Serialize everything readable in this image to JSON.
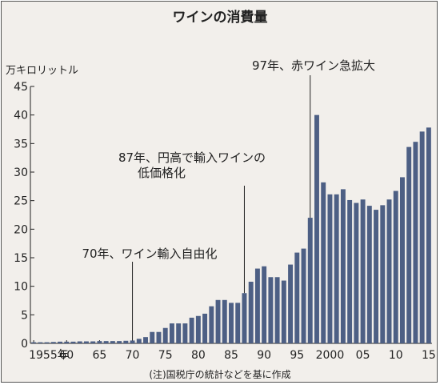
{
  "chart_data": {
    "type": "bar",
    "title": "ワインの消費量",
    "unit_label": "万キロリットル",
    "source": "(注)国税庁の統計などを基に作成",
    "ylim": [
      0,
      45
    ],
    "y_ticks": [
      0,
      5,
      10,
      15,
      20,
      25,
      30,
      35,
      40,
      45
    ],
    "x_tick_labels": [
      {
        "year": 1955,
        "label": "1955年"
      },
      {
        "year": 1960,
        "label": "60"
      },
      {
        "year": 1965,
        "label": "65"
      },
      {
        "year": 1970,
        "label": "70"
      },
      {
        "year": 1975,
        "label": "75"
      },
      {
        "year": 1980,
        "label": "80"
      },
      {
        "year": 1985,
        "label": "85"
      },
      {
        "year": 1990,
        "label": "90"
      },
      {
        "year": 1995,
        "label": "95"
      },
      {
        "year": 2000,
        "label": "2000"
      },
      {
        "year": 2005,
        "label": "05"
      },
      {
        "year": 2010,
        "label": "10"
      },
      {
        "year": 2015,
        "label": "15"
      }
    ],
    "grid": false,
    "bar_color": "#4d5f84",
    "years": [
      1955,
      1956,
      1957,
      1958,
      1959,
      1960,
      1961,
      1962,
      1963,
      1964,
      1965,
      1966,
      1967,
      1968,
      1969,
      1970,
      1971,
      1972,
      1973,
      1974,
      1975,
      1976,
      1977,
      1978,
      1979,
      1980,
      1981,
      1982,
      1983,
      1984,
      1985,
      1986,
      1987,
      1988,
      1989,
      1990,
      1991,
      1992,
      1993,
      1994,
      1995,
      1996,
      1997,
      1998,
      1999,
      2000,
      2001,
      2002,
      2003,
      2004,
      2005,
      2006,
      2007,
      2008,
      2009,
      2010,
      2011,
      2012,
      2013,
      2014,
      2015
    ],
    "values": [
      0.2,
      0.2,
      0.2,
      0.25,
      0.3,
      0.3,
      0.3,
      0.35,
      0.35,
      0.35,
      0.4,
      0.4,
      0.4,
      0.4,
      0.45,
      0.5,
      0.8,
      1.1,
      2.0,
      2.0,
      2.7,
      3.5,
      3.5,
      3.5,
      4.5,
      4.8,
      5.2,
      6.5,
      7.6,
      7.6,
      7.1,
      7.1,
      8.8,
      10.8,
      13.1,
      13.5,
      11.6,
      11.6,
      11.0,
      13.8,
      15.9,
      16.6,
      22.0,
      40.0,
      28.2,
      26.1,
      26.1,
      27.0,
      25.1,
      24.6,
      25.2,
      24.1,
      23.4,
      24.2,
      25.2,
      26.7,
      29.1,
      34.4,
      35.3,
      37.1,
      37.8
    ],
    "annotations": [
      {
        "year": 1970,
        "text_lines": [
          "70年、ワイン輸入自由化"
        ]
      },
      {
        "year": 1987,
        "text_lines": [
          "87年、円高で輸入ワインの",
          "低価格化"
        ]
      },
      {
        "year": 1997,
        "text_lines": [
          "97年、赤ワイン急拡大"
        ]
      }
    ]
  }
}
